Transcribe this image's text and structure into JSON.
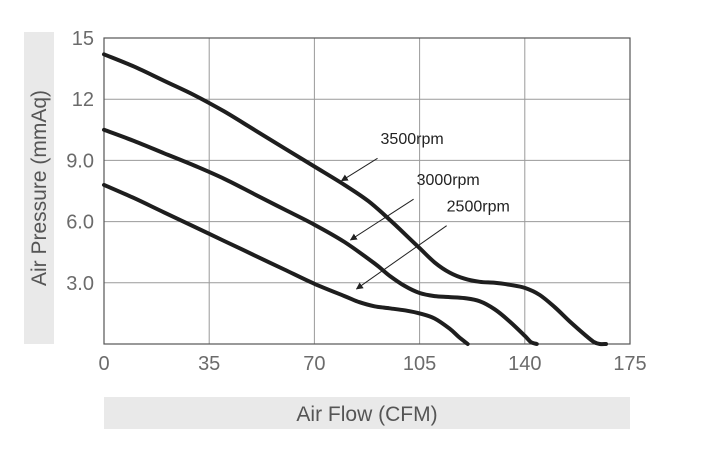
{
  "chart_data": {
    "type": "line",
    "title": "",
    "xlabel": "Air Flow (CFM)",
    "ylabel": "Air Pressure (mmAq)",
    "xlim": [
      0,
      175
    ],
    "ylim": [
      0,
      15
    ],
    "x_ticks": [
      "0",
      "35",
      "70",
      "105",
      "140",
      "175"
    ],
    "x_tick_values": [
      0,
      35,
      70,
      105,
      140,
      175
    ],
    "y_ticks": [
      "15",
      "12",
      "9.0",
      "6.0",
      "3.0"
    ],
    "y_tick_values": [
      15,
      12,
      9,
      6,
      3
    ],
    "grid": true,
    "series": [
      {
        "name": "3500rpm",
        "x": [
          0,
          10,
          20,
          30,
          40,
          50,
          60,
          70,
          80,
          88,
          95,
          100,
          105,
          110,
          115,
          120,
          125,
          130,
          135,
          140,
          145,
          150,
          155,
          160,
          163,
          165,
          167
        ],
        "y": [
          14.2,
          13.6,
          12.9,
          12.2,
          11.4,
          10.5,
          9.6,
          8.7,
          7.8,
          7.0,
          6.1,
          5.4,
          4.7,
          4.0,
          3.5,
          3.2,
          3.05,
          3.0,
          2.9,
          2.75,
          2.4,
          1.8,
          1.1,
          0.45,
          0.1,
          0.0,
          0.0
        ]
      },
      {
        "name": "3000rpm",
        "x": [
          0,
          10,
          20,
          30,
          40,
          50,
          60,
          70,
          80,
          90,
          95,
          100,
          105,
          110,
          115,
          120,
          125,
          130,
          135,
          140,
          142,
          144
        ],
        "y": [
          10.5,
          9.95,
          9.35,
          8.75,
          8.1,
          7.35,
          6.6,
          5.85,
          5.0,
          3.95,
          3.35,
          2.85,
          2.5,
          2.35,
          2.3,
          2.25,
          2.1,
          1.7,
          1.1,
          0.4,
          0.1,
          0.0
        ]
      },
      {
        "name": "2500rpm",
        "x": [
          0,
          10,
          20,
          30,
          40,
          50,
          60,
          70,
          80,
          85,
          90,
          95,
          100,
          105,
          110,
          115,
          118,
          121
        ],
        "y": [
          7.8,
          7.15,
          6.45,
          5.75,
          5.05,
          4.35,
          3.65,
          2.95,
          2.35,
          2.05,
          1.85,
          1.75,
          1.65,
          1.5,
          1.25,
          0.75,
          0.35,
          0.0
        ]
      }
    ],
    "annotations": [
      {
        "label": "3500rpm",
        "text_x": 92,
        "text_y": 9.8,
        "arrow_from": [
          91,
          9.1
        ],
        "arrow_to": [
          79,
          8.0
        ]
      },
      {
        "label": "3000rpm",
        "text_x": 104,
        "text_y": 7.8,
        "arrow_from": [
          103,
          7.1
        ],
        "arrow_to": [
          82,
          5.1
        ]
      },
      {
        "label": "2500rpm",
        "text_x": 114,
        "text_y": 6.5,
        "arrow_from": [
          114,
          5.8
        ],
        "arrow_to": [
          84,
          2.7
        ]
      }
    ]
  }
}
